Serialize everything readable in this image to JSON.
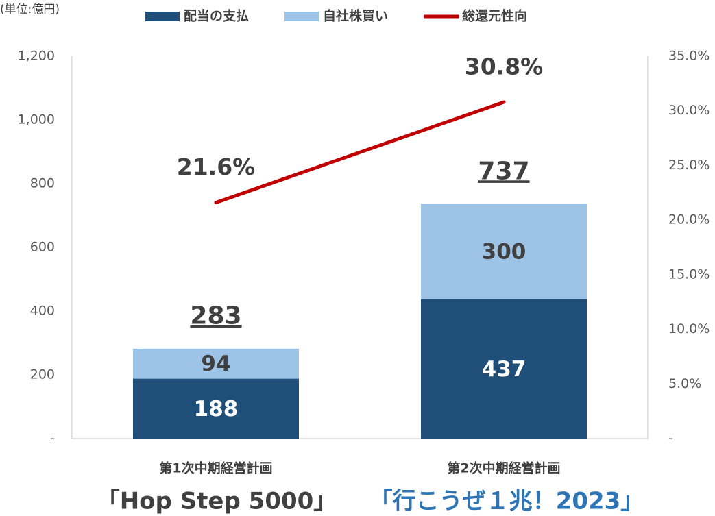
{
  "chart_data": {
    "type": "bar",
    "unit_label": "(単位:億円)",
    "categories": [
      "第1次中期経営計画",
      "第2次中期経営計画"
    ],
    "series": [
      {
        "name": "配当の支払",
        "color": "#1f4e79",
        "values": [
          188,
          437
        ]
      },
      {
        "name": "自社株買い",
        "color": "#9dc3e6",
        "values": [
          94,
          300
        ]
      },
      {
        "name": "総還元性向",
        "color": "#c00000",
        "type": "line",
        "axis": "y2",
        "values": [
          21.6,
          30.8
        ],
        "value_labels": [
          "21.6%",
          "30.8%"
        ]
      }
    ],
    "totals": [
      283,
      737
    ],
    "stacked": true,
    "ylim": [
      0,
      1200
    ],
    "yticks": [
      {
        "value": 0,
        "label": "-"
      },
      200,
      400,
      600,
      800,
      {
        "value": 1000,
        "label": "1,000"
      },
      {
        "value": 1200,
        "label": "1,200"
      }
    ],
    "y2lim": [
      0,
      35
    ],
    "y2ticks": [
      {
        "value": 0,
        "label": "-"
      },
      {
        "value": 5,
        "label": "5.0%"
      },
      {
        "value": 10,
        "label": "10.0%"
      },
      {
        "value": 15,
        "label": "15.0%"
      },
      {
        "value": 20,
        "label": "20.0%"
      },
      {
        "value": 25,
        "label": "25.0%"
      },
      {
        "value": 30,
        "label": "30.0%"
      },
      {
        "value": 35,
        "label": "35.0%"
      }
    ],
    "legend": "top",
    "captions": [
      {
        "text": "「Hop Step 5000」",
        "color": "#404040"
      },
      {
        "text": "「行こうぜ１兆！2023」",
        "color": "#2e75b6"
      }
    ]
  }
}
